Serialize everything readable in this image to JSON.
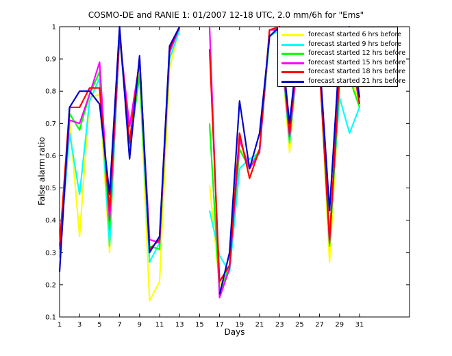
{
  "chart_data": {
    "type": "line",
    "title": "COSMO-DE and RANIE 1: 01/2007 12-18 UTC, 2.0 mm/6h for \"Ems\"",
    "xlabel": "Days",
    "ylabel": "False alarm ratio",
    "xlim": [
      1,
      36
    ],
    "ylim": [
      0.1,
      1
    ],
    "xticks": [
      1,
      3,
      5,
      7,
      9,
      11,
      13,
      15,
      17,
      19,
      21,
      23,
      25,
      27,
      29,
      31
    ],
    "yticks": [
      0.1,
      0.2,
      0.3,
      0.4,
      0.5,
      0.6,
      0.7,
      0.8,
      0.9,
      1
    ],
    "legend_position": "top-right",
    "grid": false,
    "x": [
      1,
      2,
      3,
      4,
      5,
      6,
      7,
      8,
      9,
      10,
      11,
      12,
      13,
      14,
      15,
      16,
      17,
      18,
      19,
      20,
      21,
      22,
      23,
      24,
      25,
      26,
      27,
      28,
      29,
      30,
      31
    ],
    "series": [
      {
        "name": "forecast started 6 hrs before",
        "color": "#ffff00",
        "values": [
          0.26,
          0.71,
          0.35,
          0.78,
          0.79,
          0.3,
          0.99,
          0.61,
          0.86,
          0.15,
          0.21,
          0.87,
          1.0,
          null,
          null,
          0.51,
          0.2,
          0.26,
          0.66,
          0.53,
          0.62,
          0.99,
          0.99,
          0.61,
          0.97,
          0.86,
          0.89,
          0.27,
          0.81,
          0.86,
          0.76
        ]
      },
      {
        "name": "forecast started 9 hrs before",
        "color": "#00ffff",
        "values": [
          0.29,
          0.67,
          0.48,
          0.77,
          0.84,
          0.32,
          0.98,
          0.62,
          0.85,
          0.27,
          0.33,
          0.9,
          0.99,
          null,
          null,
          0.43,
          0.29,
          0.24,
          0.56,
          0.59,
          0.61,
          0.97,
          0.99,
          0.64,
          0.96,
          0.88,
          0.89,
          0.36,
          0.78,
          0.67,
          0.75
        ]
      },
      {
        "name": "forecast started 12 hrs before",
        "color": "#00ff00",
        "values": [
          0.3,
          0.73,
          0.68,
          0.79,
          0.86,
          0.37,
          0.97,
          0.63,
          0.85,
          0.32,
          0.31,
          0.92,
          1.0,
          null,
          null,
          0.7,
          0.17,
          0.26,
          0.62,
          0.56,
          0.62,
          0.97,
          1.0,
          0.65,
          0.98,
          0.88,
          0.88,
          0.32,
          0.83,
          0.84,
          0.75
        ]
      },
      {
        "name": "forecast started 15 hrs before",
        "color": "#ff00ff",
        "values": [
          0.31,
          0.71,
          0.7,
          0.79,
          0.89,
          0.4,
          0.97,
          0.69,
          0.89,
          0.34,
          0.33,
          0.92,
          1.0,
          null,
          null,
          1.0,
          0.16,
          0.25,
          0.65,
          0.56,
          0.61,
          0.99,
          0.99,
          0.66,
          0.96,
          0.89,
          0.92,
          0.33,
          0.87,
          0.94,
          0.76
        ]
      },
      {
        "name": "forecast started 18 hrs before",
        "color": "#ff0000",
        "values": [
          0.32,
          0.75,
          0.75,
          0.81,
          0.81,
          0.43,
          0.98,
          0.64,
          0.9,
          0.31,
          0.34,
          0.93,
          1.0,
          null,
          null,
          0.93,
          0.21,
          0.26,
          0.67,
          0.53,
          0.62,
          0.99,
          1.0,
          0.67,
          0.99,
          0.87,
          0.87,
          0.34,
          0.85,
          0.96,
          0.76
        ]
      },
      {
        "name": "forecast started 21 hrs before",
        "color": "#0000cc",
        "values": [
          0.24,
          0.75,
          0.8,
          0.8,
          0.76,
          0.48,
          1.0,
          0.59,
          0.91,
          0.3,
          0.35,
          0.94,
          1.0,
          null,
          null,
          null,
          0.17,
          0.3,
          0.77,
          0.56,
          0.67,
          0.97,
          1.0,
          0.7,
          0.99,
          0.89,
          0.9,
          0.43,
          0.92,
          1.0,
          0.78
        ]
      }
    ]
  }
}
